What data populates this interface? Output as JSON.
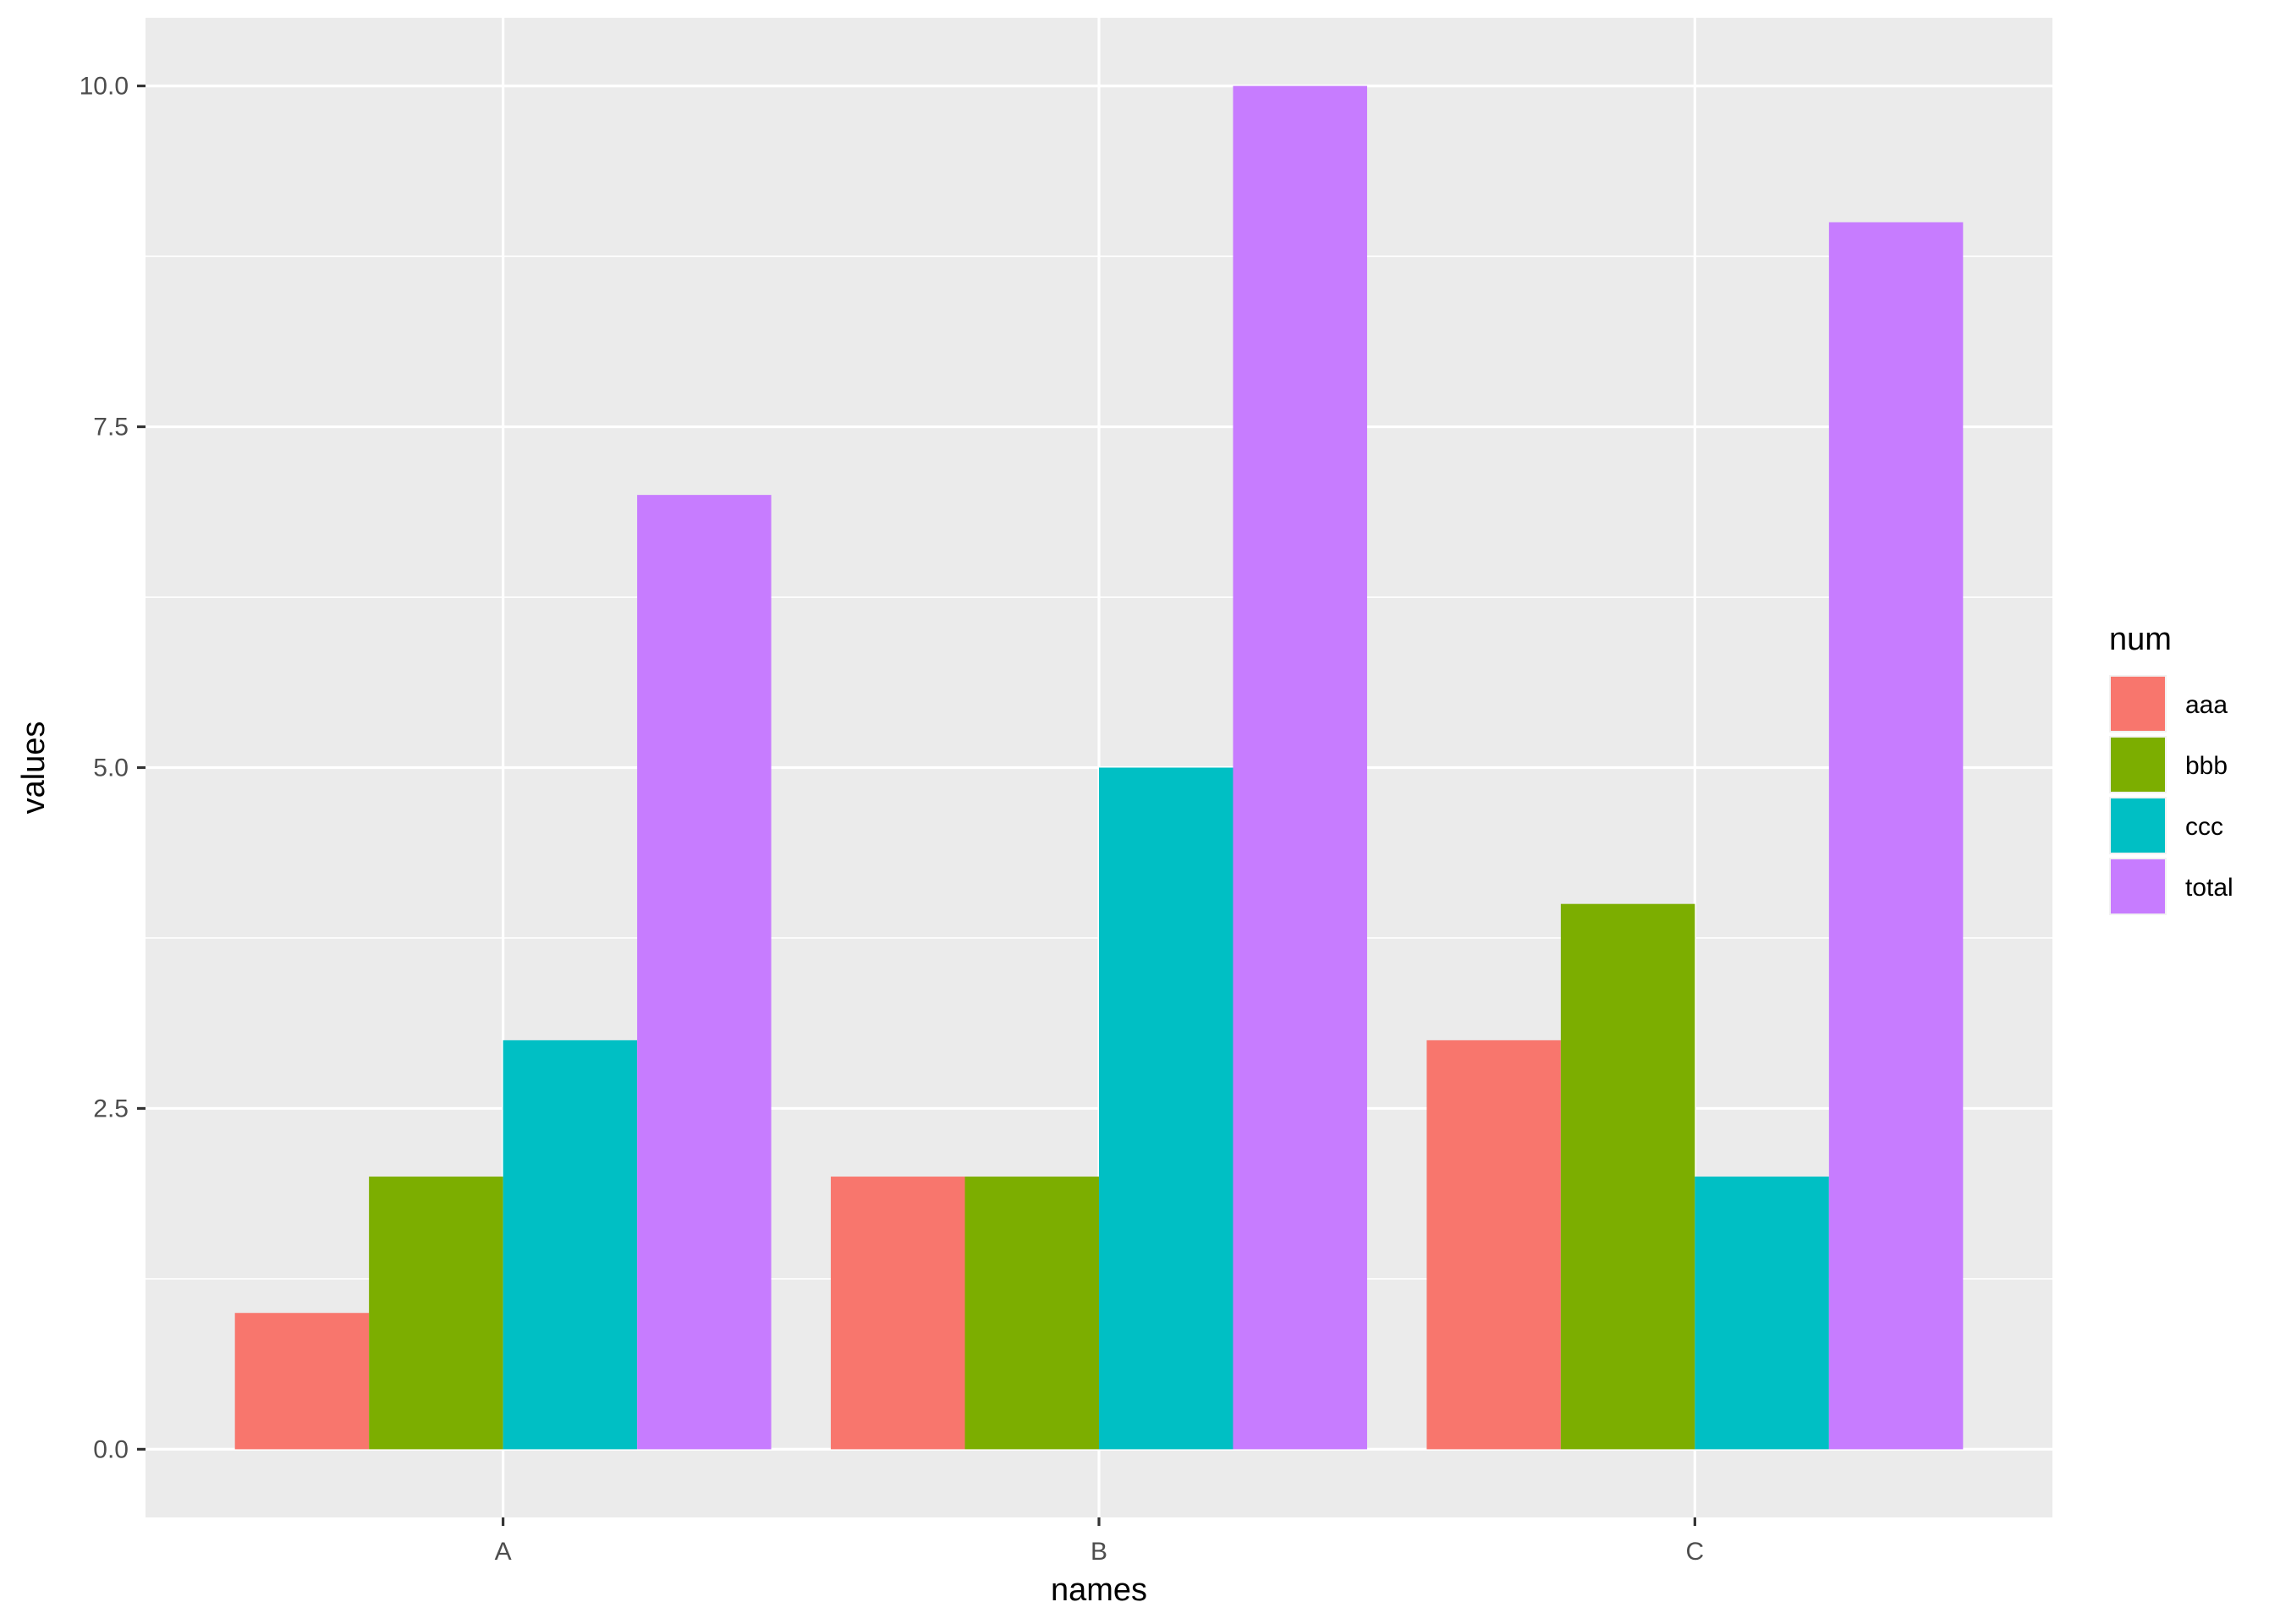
{
  "chart_data": {
    "type": "bar",
    "categories": [
      "A",
      "B",
      "C"
    ],
    "series": [
      {
        "name": "aaa",
        "values": [
          1,
          2,
          3
        ],
        "color": "#F8766D"
      },
      {
        "name": "bbb",
        "values": [
          2,
          2,
          4
        ],
        "color": "#7CAE00"
      },
      {
        "name": "ccc",
        "values": [
          3,
          5,
          2
        ],
        "color": "#00BFC4"
      },
      {
        "name": "total",
        "values": [
          7,
          10,
          9
        ],
        "color": "#C77CFF"
      }
    ],
    "xlabel": "names",
    "ylabel": "values",
    "ylim": [
      -0.5,
      10.5
    ],
    "yticks": [
      0,
      2.5,
      5,
      7.5,
      10
    ],
    "ytick_labels": [
      "0.0",
      "2.5",
      "5.0",
      "7.5",
      "10.0"
    ],
    "grid": true,
    "panel_background": "#EBEBEB",
    "legend": {
      "title": "num",
      "position": "right",
      "entries": [
        "aaa",
        "bbb",
        "ccc",
        "total"
      ]
    }
  }
}
